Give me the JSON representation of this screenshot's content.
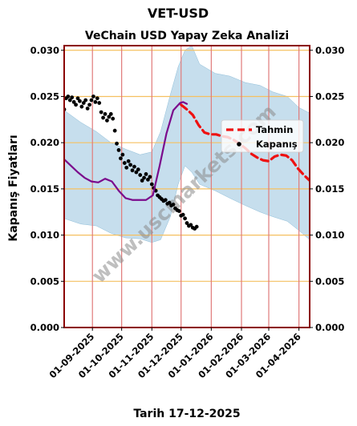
{
  "chart_data": {
    "type": "line",
    "suptitle": "VET-USD",
    "title": "VeChain USD Yapay Zeka Analizi",
    "ylabel": "Kapanış Fiyatları",
    "xlabel": "Tarih 17-12-2025",
    "watermark": "www.uscmarkets.com",
    "ylim": [
      0,
      0.0305
    ],
    "y_ticks": [
      "0.000",
      "0.005",
      "0.010",
      "0.015",
      "0.020",
      "0.025",
      "0.030"
    ],
    "y_tick_values": [
      0,
      0.005,
      0.01,
      0.015,
      0.02,
      0.025,
      0.03
    ],
    "xlim": [
      "2025-08-03",
      "2026-04-12"
    ],
    "x_ticks": [
      "01-09-2025",
      "01-10-2025",
      "01-11-2025",
      "01-12-2025",
      "01-01-2026",
      "01-02-2026",
      "01-03-2026",
      "01-04-2026"
    ],
    "x_tick_dates": [
      "2025-09-01",
      "2025-10-01",
      "2025-11-01",
      "2025-12-01",
      "2026-01-01",
      "2026-02-01",
      "2026-03-01",
      "2026-04-01"
    ],
    "grid": true,
    "legend_position": "right",
    "colors": {
      "closing": "#000000",
      "forecast": "#ee1111",
      "model": "#7b0a8c",
      "band": "#a8cde3",
      "h_grid": "#f5c060",
      "v_grid": "#e07a7a",
      "frame": "#8b0000"
    },
    "series": [
      {
        "name": "Kapanış",
        "style": "dots",
        "dates": [
          "2025-08-03",
          "2025-08-05",
          "2025-08-07",
          "2025-08-09",
          "2025-08-11",
          "2025-08-13",
          "2025-08-15",
          "2025-08-17",
          "2025-08-19",
          "2025-08-21",
          "2025-08-23",
          "2025-08-25",
          "2025-08-27",
          "2025-08-29",
          "2025-08-31",
          "2025-09-02",
          "2025-09-04",
          "2025-09-06",
          "2025-09-08",
          "2025-09-10",
          "2025-09-12",
          "2025-09-14",
          "2025-09-16",
          "2025-09-18",
          "2025-09-20",
          "2025-09-22",
          "2025-09-24",
          "2025-09-26",
          "2025-09-28",
          "2025-09-30",
          "2025-10-02",
          "2025-10-04",
          "2025-10-06",
          "2025-10-08",
          "2025-10-10",
          "2025-10-12",
          "2025-10-14",
          "2025-10-16",
          "2025-10-18",
          "2025-10-20",
          "2025-10-22",
          "2025-10-24",
          "2025-10-26",
          "2025-10-28",
          "2025-10-30",
          "2025-11-01",
          "2025-11-03",
          "2025-11-05",
          "2025-11-07",
          "2025-11-09",
          "2025-11-11",
          "2025-11-13",
          "2025-11-15",
          "2025-11-17",
          "2025-11-19",
          "2025-11-21",
          "2025-11-23",
          "2025-11-25",
          "2025-11-27",
          "2025-11-29",
          "2025-12-01",
          "2025-12-03",
          "2025-12-05",
          "2025-12-07",
          "2025-12-09",
          "2025-12-11",
          "2025-12-13",
          "2025-12-15",
          "2025-12-17"
        ],
        "values": [
          0.0236,
          0.0248,
          0.025,
          0.0246,
          0.0249,
          0.0244,
          0.0241,
          0.0248,
          0.0245,
          0.0239,
          0.0243,
          0.0246,
          0.0237,
          0.0241,
          0.0246,
          0.025,
          0.0244,
          0.0248,
          0.0243,
          0.0233,
          0.0227,
          0.0231,
          0.0224,
          0.0228,
          0.0231,
          0.0226,
          0.0213,
          0.0199,
          0.0192,
          0.0183,
          0.0187,
          0.0178,
          0.0173,
          0.018,
          0.0176,
          0.017,
          0.0174,
          0.0168,
          0.0171,
          0.0165,
          0.0159,
          0.0162,
          0.0166,
          0.016,
          0.0163,
          0.0155,
          0.0151,
          0.0148,
          0.0143,
          0.0141,
          0.0139,
          0.0137,
          0.0138,
          0.0134,
          0.0135,
          0.0132,
          0.0133,
          0.0129,
          0.0127,
          0.0126,
          0.0121,
          0.0122,
          0.0118,
          0.0113,
          0.011,
          0.0111,
          0.0108,
          0.0107,
          0.0109
        ]
      },
      {
        "name": "Tahmin",
        "style": "dashed",
        "dates": [
          "2025-12-01",
          "2025-12-07",
          "2025-12-13",
          "2025-12-19",
          "2025-12-25",
          "2025-12-31",
          "2026-01-06",
          "2026-01-12",
          "2026-01-18",
          "2026-01-24",
          "2026-01-30",
          "2026-02-05",
          "2026-02-11",
          "2026-02-17",
          "2026-02-23",
          "2026-03-01",
          "2026-03-07",
          "2026-03-13",
          "2026-03-19",
          "2026-03-25",
          "2026-03-31",
          "2026-04-06",
          "2026-04-12"
        ],
        "values": [
          0.0241,
          0.0236,
          0.023,
          0.0219,
          0.0211,
          0.0209,
          0.0209,
          0.0207,
          0.0206,
          0.0203,
          0.0199,
          0.0194,
          0.0188,
          0.0184,
          0.0181,
          0.018,
          0.0185,
          0.0187,
          0.0186,
          0.0181,
          0.0172,
          0.0165,
          0.0159
        ]
      },
      {
        "style": "line",
        "dates": [
          "2025-08-03",
          "2025-08-10",
          "2025-08-17",
          "2025-08-24",
          "2025-08-31",
          "2025-09-07",
          "2025-09-14",
          "2025-09-21",
          "2025-09-28",
          "2025-10-05",
          "2025-10-12",
          "2025-10-19",
          "2025-10-26",
          "2025-11-02",
          "2025-11-09",
          "2025-11-16",
          "2025-11-23",
          "2025-11-30",
          "2025-12-03",
          "2025-12-07"
        ],
        "values": [
          0.0182,
          0.0175,
          0.0168,
          0.0162,
          0.0158,
          0.0157,
          0.0161,
          0.0158,
          0.0148,
          0.014,
          0.0138,
          0.0138,
          0.0138,
          0.0143,
          0.0175,
          0.021,
          0.0235,
          0.0243,
          0.0244,
          0.0242
        ]
      }
    ],
    "band": {
      "dates": [
        "2025-08-03",
        "2025-08-20",
        "2025-09-05",
        "2025-09-20",
        "2025-10-05",
        "2025-10-20",
        "2025-11-01",
        "2025-11-10",
        "2025-11-20",
        "2025-11-28",
        "2025-12-05",
        "2025-12-12",
        "2025-12-20",
        "2026-01-05",
        "2026-01-20",
        "2026-02-05",
        "2026-02-20",
        "2026-03-05",
        "2026-03-20",
        "2026-04-01",
        "2026-04-12"
      ],
      "upper": [
        0.0235,
        0.0222,
        0.0212,
        0.02,
        0.0193,
        0.0187,
        0.019,
        0.0212,
        0.0252,
        0.0282,
        0.03,
        0.0305,
        0.0285,
        0.0275,
        0.0272,
        0.0265,
        0.0262,
        0.0255,
        0.025,
        0.0238,
        0.0232
      ],
      "lower": [
        0.0118,
        0.0112,
        0.011,
        0.0102,
        0.0097,
        0.0096,
        0.0092,
        0.0095,
        0.012,
        0.0155,
        0.0175,
        0.0168,
        0.0155,
        0.0148,
        0.014,
        0.0132,
        0.0125,
        0.012,
        0.0115,
        0.0105,
        0.0095
      ]
    }
  }
}
